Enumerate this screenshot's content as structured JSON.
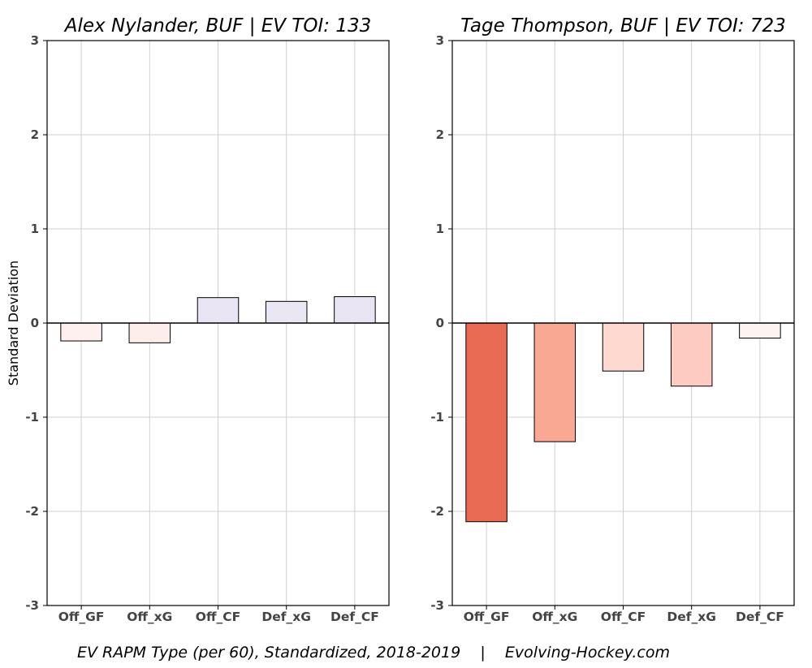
{
  "chart_data": [
    {
      "type": "bar",
      "title": "Alex Nylander, BUF  |  EV TOI: 133",
      "ylabel": "Standard Deviation",
      "xlabel": "",
      "categories": [
        "Off_GF",
        "Off_xG",
        "Off_CF",
        "Def_xG",
        "Def_CF"
      ],
      "values": [
        -0.19,
        -0.21,
        0.27,
        0.23,
        0.28
      ],
      "colors": [
        "#fdf0ee",
        "#fdeeea",
        "#e9e4f3",
        "#ebe6f4",
        "#e9e4f3"
      ],
      "ylim": [
        -3,
        3
      ],
      "yticks": [
        -3,
        -2,
        -1,
        0,
        1,
        2,
        3
      ],
      "grid": true
    },
    {
      "type": "bar",
      "title": "Tage Thompson, BUF  |  EV TOI: 723",
      "ylabel": "",
      "xlabel": "",
      "categories": [
        "Off_GF",
        "Off_xG",
        "Off_CF",
        "Def_xG",
        "Def_CF"
      ],
      "values": [
        -2.11,
        -1.26,
        -0.51,
        -0.67,
        -0.16
      ],
      "colors": [
        "#e96a52",
        "#f9a894",
        "#fdd9d0",
        "#fdcbc1",
        "#fdf3f1"
      ],
      "ylim": [
        -3,
        3
      ],
      "yticks": [
        -3,
        -2,
        -1,
        0,
        1,
        2,
        3
      ],
      "grid": true
    }
  ],
  "caption": "EV RAPM Type (per 60), Standardized, 2018-2019    |    Evolving-Hockey.com"
}
